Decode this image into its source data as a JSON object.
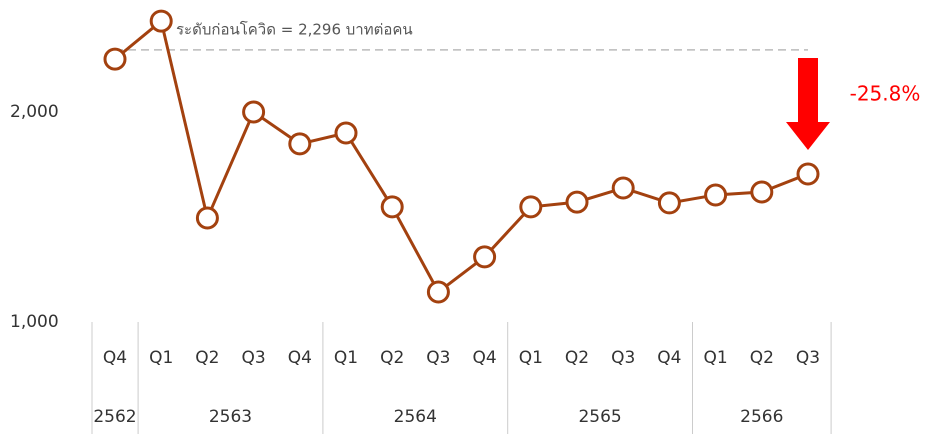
{
  "chart_data": {
    "type": "line",
    "categories": [
      "Q4",
      "Q1",
      "Q2",
      "Q3",
      "Q4",
      "Q1",
      "Q2",
      "Q3",
      "Q4",
      "Q1",
      "Q2",
      "Q3",
      "Q4",
      "Q1",
      "Q2",
      "Q3"
    ],
    "x_groups": [
      {
        "label": "2562",
        "count": 1
      },
      {
        "label": "2563",
        "count": 4
      },
      {
        "label": "2564",
        "count": 4
      },
      {
        "label": "2565",
        "count": 4
      },
      {
        "label": "2566",
        "count": 3
      }
    ],
    "series": [
      {
        "color": "#a3410f",
        "values": [
          2252,
          2433,
          1495,
          2000,
          1848,
          1900,
          1548,
          1143,
          1310,
          1548,
          1571,
          1638,
          1567,
          1605,
          1619,
          1705
        ]
      }
    ],
    "ylim": [
      1000,
      2500
    ],
    "yticks": [
      {
        "value": 1000,
        "label": "1,000"
      },
      {
        "value": 2000,
        "label": "2,000"
      }
    ],
    "reference_line": {
      "value": 2296,
      "label": "ระดับก่อนโควิด = 2,296 บาทต่อคน"
    },
    "change_annotation": {
      "value": -25.8,
      "label": "-25.8%",
      "color": "#ff0000"
    }
  }
}
